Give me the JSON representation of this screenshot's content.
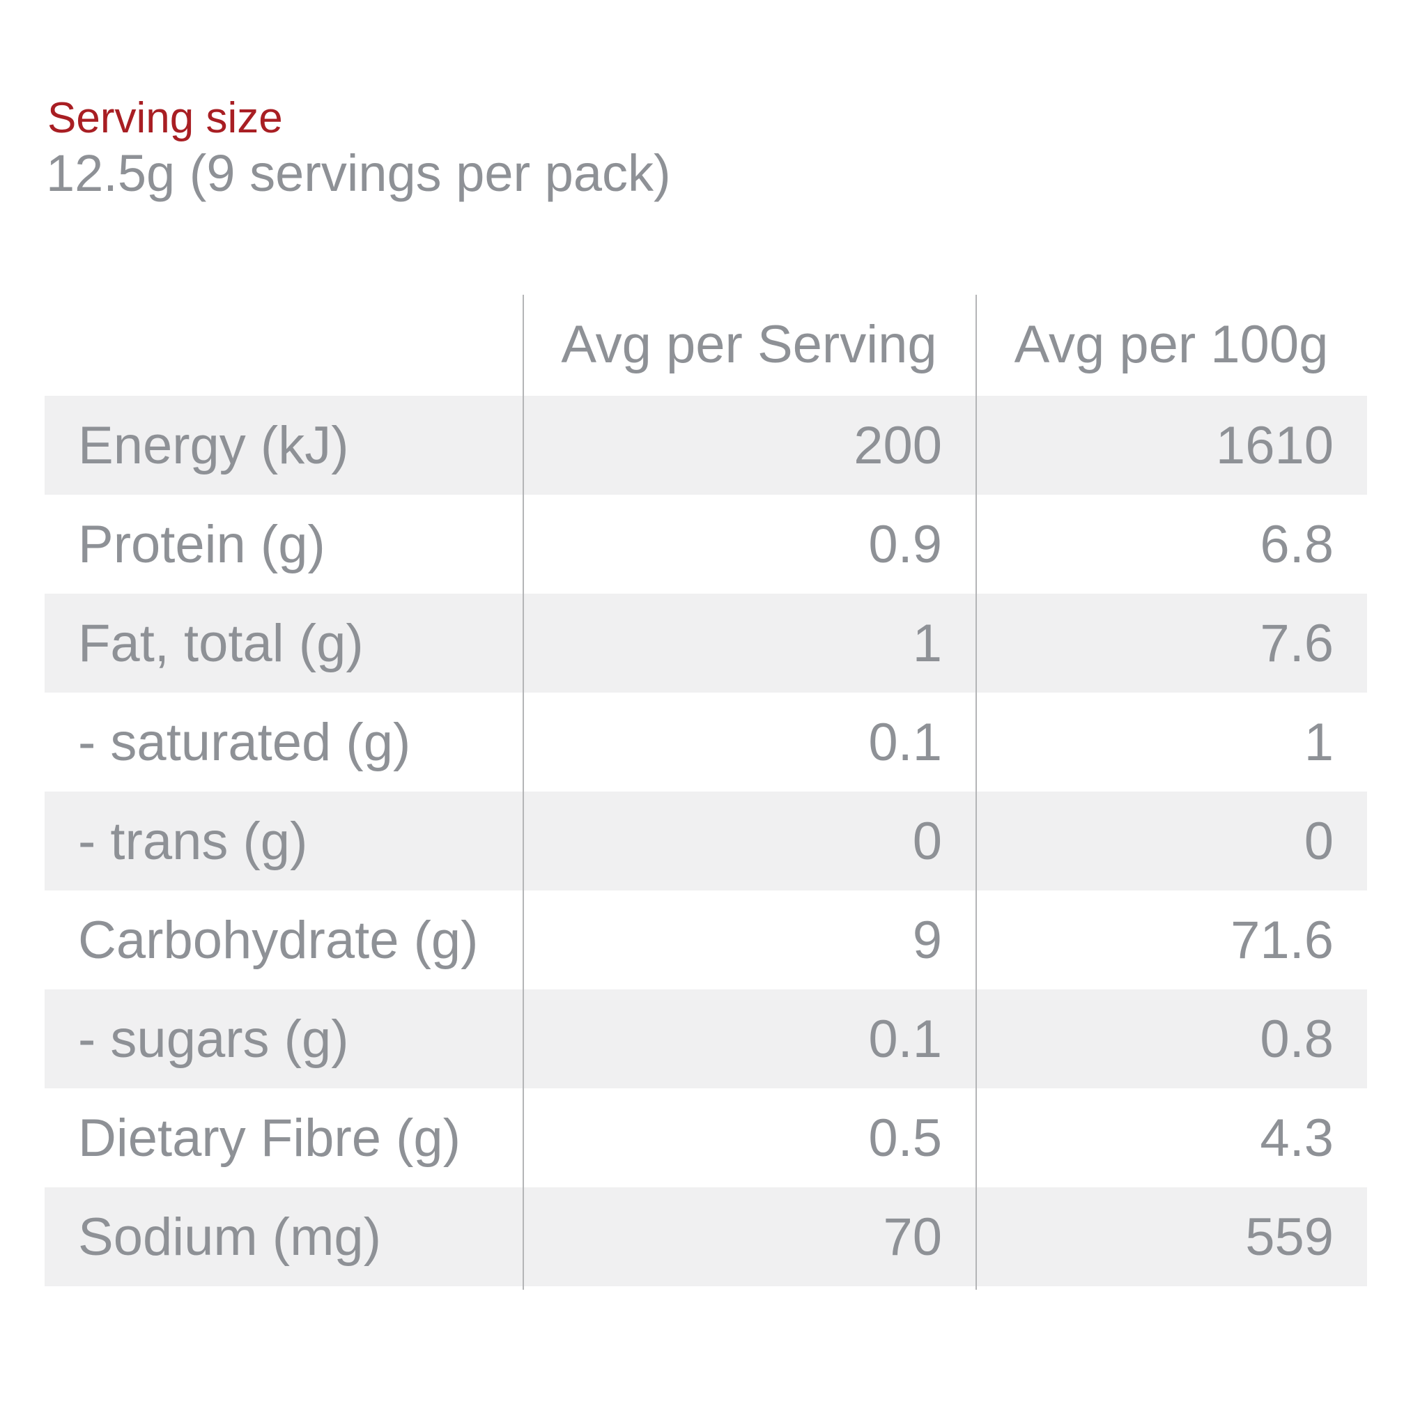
{
  "serving": {
    "title": "Serving size",
    "value": "12.5g (9 servings per pack)"
  },
  "table": {
    "columns": [
      "",
      "Avg per Serving",
      "Avg per 100g"
    ],
    "rows": [
      {
        "label": "Energy (kJ)",
        "per_serving": "200",
        "per_100g": "1610"
      },
      {
        "label": "Protein (g)",
        "per_serving": "0.9",
        "per_100g": "6.8"
      },
      {
        "label": "Fat, total (g)",
        "per_serving": "1",
        "per_100g": "7.6"
      },
      {
        "label": "- saturated (g)",
        "per_serving": "0.1",
        "per_100g": "1"
      },
      {
        "label": "- trans (g)",
        "per_serving": "0",
        "per_100g": "0"
      },
      {
        "label": "Carbohydrate (g)",
        "per_serving": "9",
        "per_100g": "71.6"
      },
      {
        "label": "- sugars (g)",
        "per_serving": "0.1",
        "per_100g": "0.8"
      },
      {
        "label": "Dietary Fibre (g)",
        "per_serving": "0.5",
        "per_100g": "4.3"
      },
      {
        "label": "Sodium (mg)",
        "per_serving": "70",
        "per_100g": "559"
      }
    ]
  },
  "colors": {
    "accent_red": "#a81e23",
    "text_gray": "#8e9196",
    "row_shade": "#f0f0f1",
    "divider_gray": "#b4b5b7"
  }
}
